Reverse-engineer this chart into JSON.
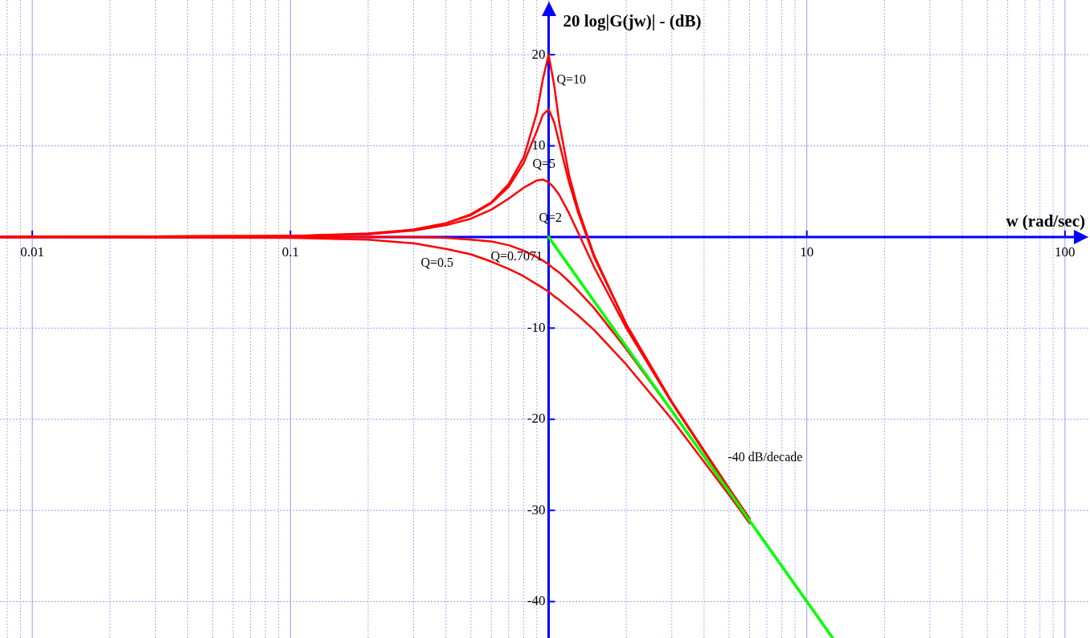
{
  "chart_data": {
    "type": "line",
    "xlabel": "w (rad/sec)",
    "ylabel": "20 log|G(jw)| - (dB)",
    "log": "x",
    "grid": true,
    "marker": "none",
    "line_style": "solid",
    "xlim": [
      0.0075,
      125
    ],
    "ylim": [
      -44,
      26
    ],
    "xticks": [
      {
        "value": 0.008,
        "label": null
      },
      {
        "value": 0.009,
        "label": null
      },
      0.01,
      {
        "value": 0.02,
        "label": null
      },
      {
        "value": 0.03,
        "label": null
      },
      {
        "value": 0.04,
        "label": null
      },
      {
        "value": 0.05,
        "label": null
      },
      {
        "value": 0.06,
        "label": null
      },
      {
        "value": 0.07,
        "label": null
      },
      {
        "value": 0.08,
        "label": null
      },
      {
        "value": 0.09,
        "label": null
      },
      0.1,
      {
        "value": 0.2,
        "label": null
      },
      {
        "value": 0.3,
        "label": null
      },
      {
        "value": 0.4,
        "label": null
      },
      {
        "value": 0.5,
        "label": null
      },
      {
        "value": 0.6,
        "label": null
      },
      {
        "value": 0.7,
        "label": null
      },
      {
        "value": 0.8,
        "label": null
      },
      {
        "value": 0.9,
        "label": null
      },
      {
        "value": 1,
        "label": null
      },
      {
        "value": 2,
        "label": null
      },
      {
        "value": 3,
        "label": null
      },
      {
        "value": 4,
        "label": null
      },
      {
        "value": 5,
        "label": null
      },
      {
        "value": 6,
        "label": null
      },
      {
        "value": 7,
        "label": null
      },
      {
        "value": 8,
        "label": null
      },
      {
        "value": 9,
        "label": null
      },
      10,
      {
        "value": 20,
        "label": null
      },
      {
        "value": 30,
        "label": null
      },
      {
        "value": 40,
        "label": null
      },
      {
        "value": 50,
        "label": null
      },
      {
        "value": 60,
        "label": null
      },
      {
        "value": 70,
        "label": null
      },
      {
        "value": 80,
        "label": null
      },
      {
        "value": 90,
        "label": null
      },
      100
    ],
    "yticks": [
      -40,
      -30,
      -20,
      -10,
      {
        "value": 0,
        "label": null
      },
      10,
      20
    ],
    "series": [
      {
        "name": "-40 dB/decade",
        "type": "line",
        "color": "#00ff00",
        "x": [
          1,
          12.6
        ],
        "values": [
          0,
          -44
        ]
      },
      {
        "name": "Q=10",
        "color": "#ff0000",
        "x": [
          0.0075,
          0.1,
          0.2,
          0.3,
          0.4,
          0.5,
          0.6,
          0.7,
          0.8,
          0.9,
          0.95,
          1,
          1.05,
          1.1,
          1.2,
          1.3,
          1.5,
          2,
          3,
          5,
          6
        ],
        "values": [
          0,
          0.1,
          0.4,
          0.8,
          1.5,
          2.5,
          3.8,
          5.8,
          8.7,
          13.6,
          17.3,
          20,
          16.7,
          12.5,
          6.8,
          3.1,
          -2,
          -9.6,
          -18.1,
          -27.6,
          -30.9
        ]
      },
      {
        "name": "Q=5",
        "color": "#ff0000",
        "x": [
          0.0075,
          0.1,
          0.2,
          0.3,
          0.4,
          0.5,
          0.6,
          0.7,
          0.8,
          0.9,
          0.95,
          1,
          1.05,
          1.1,
          1.2,
          1.3,
          1.5,
          2,
          3,
          5,
          6
        ],
        "values": [
          0,
          0.1,
          0.3,
          0.8,
          1.5,
          2.4,
          3.7,
          5.5,
          8.1,
          11.6,
          13.4,
          14,
          12.6,
          10.3,
          6,
          2.7,
          -2.2,
          -9.6,
          -18.1,
          -27.6,
          -30.9
        ]
      },
      {
        "name": "Q=2",
        "color": "#ff0000",
        "x": [
          0.0075,
          0.1,
          0.2,
          0.3,
          0.4,
          0.5,
          0.6,
          0.7,
          0.8,
          0.9,
          0.95,
          1,
          1.05,
          1.1,
          1.2,
          1.3,
          1.5,
          2,
          3,
          5,
          6
        ],
        "values": [
          0,
          0.1,
          0.3,
          0.7,
          1.3,
          2,
          3,
          4.2,
          5.4,
          6.2,
          6.3,
          6,
          5.4,
          4.6,
          2.6,
          0.5,
          -3.3,
          -10,
          -18.2,
          -27.7,
          -30.9
        ]
      },
      {
        "name": "Q=0.7071",
        "color": "#ff0000",
        "x": [
          0.0075,
          0.1,
          0.2,
          0.3,
          0.4,
          0.5,
          0.6,
          0.7,
          0.8,
          0.9,
          0.95,
          1,
          1.05,
          1.1,
          1.2,
          1.3,
          1.5,
          2,
          3,
          5,
          6
        ],
        "values": [
          0,
          0,
          0,
          0,
          -0.1,
          -0.3,
          -0.5,
          -0.9,
          -1.5,
          -2.2,
          -2.6,
          -3,
          -3.5,
          -3.9,
          -4.9,
          -5.9,
          -7.8,
          -12.3,
          -19.1,
          -28,
          -31.1
        ]
      },
      {
        "name": "Q=0.5",
        "color": "#ff0000",
        "x": [
          0.0075,
          0.1,
          0.2,
          0.3,
          0.4,
          0.5,
          0.6,
          0.7,
          0.8,
          0.9,
          0.95,
          1,
          1.05,
          1.1,
          1.2,
          1.3,
          1.5,
          2,
          3,
          5,
          6
        ],
        "values": [
          0,
          -0.1,
          -0.3,
          -0.7,
          -1.3,
          -1.9,
          -2.7,
          -3.5,
          -4.3,
          -5.2,
          -5.6,
          -6,
          -6.5,
          -6.9,
          -7.8,
          -8.6,
          -10.2,
          -14,
          -20,
          -28.3,
          -31.4
        ]
      }
    ]
  }
}
